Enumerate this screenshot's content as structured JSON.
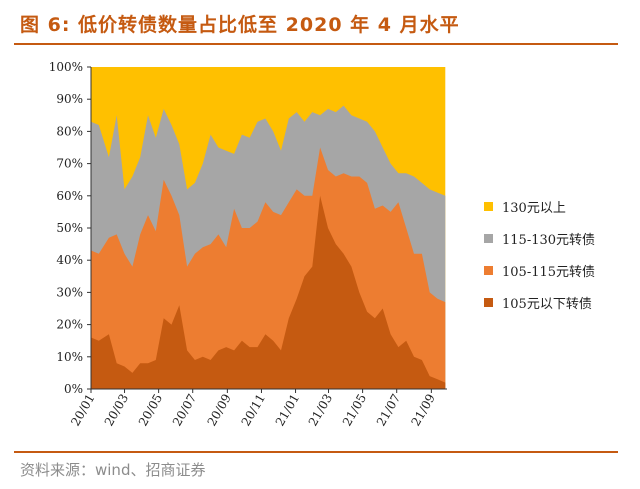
{
  "header": {
    "title": "图 6:  低价转债数量占比低至 2020 年 4 月水平"
  },
  "footer": {
    "source": "资料来源：wind、招商证券"
  },
  "chart_data": {
    "type": "area",
    "stacked": true,
    "ylim": [
      0,
      100
    ],
    "y_ticks": [
      "0%",
      "10%",
      "20%",
      "30%",
      "40%",
      "50%",
      "60%",
      "70%",
      "80%",
      "90%",
      "100%"
    ],
    "x_ticks": [
      "20/01",
      "20/03",
      "20/05",
      "20/07",
      "20/09",
      "20/11",
      "21/01",
      "21/03",
      "21/05",
      "21/07",
      "21/09"
    ],
    "x": [
      "2020-01-02",
      "2020-01-16",
      "2020-02-03",
      "2020-02-17",
      "2020-03-02",
      "2020-03-16",
      "2020-03-30",
      "2020-04-13",
      "2020-04-27",
      "2020-05-11",
      "2020-05-25",
      "2020-06-08",
      "2020-06-22",
      "2020-07-06",
      "2020-07-20",
      "2020-08-03",
      "2020-08-17",
      "2020-08-31",
      "2020-09-14",
      "2020-09-28",
      "2020-10-12",
      "2020-10-26",
      "2020-11-09",
      "2020-11-23",
      "2020-12-07",
      "2020-12-21",
      "2021-01-04",
      "2021-01-18",
      "2021-02-01",
      "2021-02-15",
      "2021-03-01",
      "2021-03-15",
      "2021-03-29",
      "2021-04-12",
      "2021-04-26",
      "2021-05-10",
      "2021-05-24",
      "2021-06-07",
      "2021-06-21",
      "2021-07-05",
      "2021-07-19",
      "2021-08-02",
      "2021-08-16",
      "2021-08-30",
      "2021-09-13",
      "2021-09-27"
    ],
    "series": [
      {
        "name": "105元以下转债",
        "color": "#c55a11",
        "values": [
          16,
          15,
          17,
          8,
          7,
          5,
          8,
          8,
          9,
          22,
          20,
          26,
          12,
          9,
          10,
          9,
          12,
          13,
          12,
          15,
          13,
          13,
          17,
          15,
          12,
          22,
          28,
          35,
          38,
          60,
          50,
          45,
          42,
          38,
          30,
          24,
          22,
          25,
          17,
          13,
          15,
          10,
          9,
          4,
          3,
          2
        ]
      },
      {
        "name": "105-115元转债",
        "color": "#ed7d31",
        "values": [
          43,
          42,
          47,
          48,
          42,
          38,
          48,
          54,
          49,
          65,
          60,
          54,
          38,
          42,
          44,
          45,
          48,
          44,
          56,
          50,
          50,
          52,
          58,
          55,
          54,
          58,
          62,
          60,
          60,
          75,
          68,
          66,
          67,
          66,
          66,
          64,
          56,
          57,
          55,
          58,
          50,
          42,
          42,
          30,
          28,
          27
        ]
      },
      {
        "name": "115-130元转债",
        "color": "#a6a6a6",
        "values": [
          83,
          82,
          72,
          85,
          62,
          66,
          72,
          85,
          78,
          87,
          82,
          76,
          62,
          64,
          70,
          79,
          75,
          74,
          73,
          79,
          78,
          83,
          84,
          80,
          74,
          84,
          86,
          83,
          86,
          85,
          87,
          86,
          88,
          85,
          84,
          83,
          80,
          75,
          70,
          67,
          67,
          66,
          64,
          62,
          61,
          60
        ]
      },
      {
        "name": "130元以上",
        "color": "#ffc000",
        "values": [
          100,
          100,
          100,
          100,
          100,
          100,
          100,
          100,
          100,
          100,
          100,
          100,
          100,
          100,
          100,
          100,
          100,
          100,
          100,
          100,
          100,
          100,
          100,
          100,
          100,
          100,
          100,
          100,
          100,
          100,
          100,
          100,
          100,
          100,
          100,
          100,
          100,
          100,
          100,
          100,
          100,
          100,
          100,
          100,
          100,
          100
        ]
      }
    ],
    "legend": "right",
    "grid": false
  }
}
